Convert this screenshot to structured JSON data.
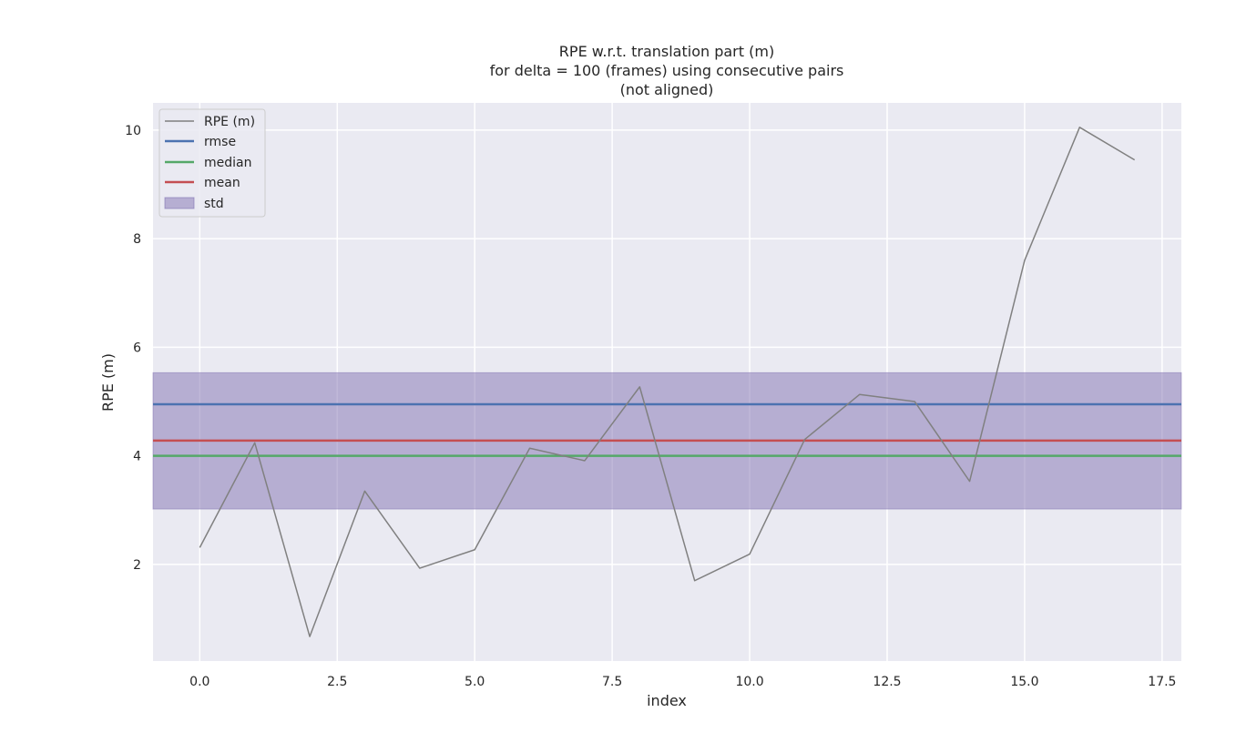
{
  "chart_data": {
    "type": "line",
    "title_lines": [
      "RPE w.r.t. translation part (m)",
      "for delta = 100 (frames) using consecutive pairs",
      "(not aligned)"
    ],
    "xlabel": "index",
    "ylabel": "RPE (m)",
    "xlim": [
      -0.85,
      17.85
    ],
    "ylim": [
      0.22,
      10.5
    ],
    "xticks": [
      0.0,
      2.5,
      5.0,
      7.5,
      10.0,
      12.5,
      15.0,
      17.5
    ],
    "xtick_labels": [
      "0.0",
      "2.5",
      "5.0",
      "7.5",
      "10.0",
      "12.5",
      "15.0",
      "17.5"
    ],
    "yticks": [
      2,
      4,
      6,
      8,
      10
    ],
    "ytick_labels": [
      "2",
      "4",
      "6",
      "8",
      "10"
    ],
    "grid": true,
    "legend_position": "upper-left",
    "series": [
      {
        "name": "RPE (m)",
        "color": "#808080",
        "x": [
          0,
          1,
          2,
          3,
          4,
          5,
          6,
          7,
          8,
          9,
          10,
          11,
          12,
          13,
          14,
          15,
          16,
          17
        ],
        "values": [
          2.31,
          4.24,
          0.67,
          3.35,
          1.93,
          2.27,
          4.14,
          3.91,
          5.27,
          1.7,
          2.19,
          4.3,
          5.13,
          5.0,
          3.53,
          7.6,
          10.05,
          9.45
        ]
      }
    ],
    "stats": {
      "rmse": {
        "label": "rmse",
        "value": 4.95,
        "color": "#4c72b0"
      },
      "median": {
        "label": "median",
        "value": 4.0,
        "color": "#55a868"
      },
      "mean": {
        "label": "mean",
        "value": 4.28,
        "color": "#c44e52"
      },
      "std": {
        "label": "std",
        "low": 3.02,
        "high": 5.53,
        "color": "#8172b2"
      }
    },
    "legend_entries": [
      "RPE (m)",
      "rmse",
      "median",
      "mean",
      "std"
    ]
  }
}
